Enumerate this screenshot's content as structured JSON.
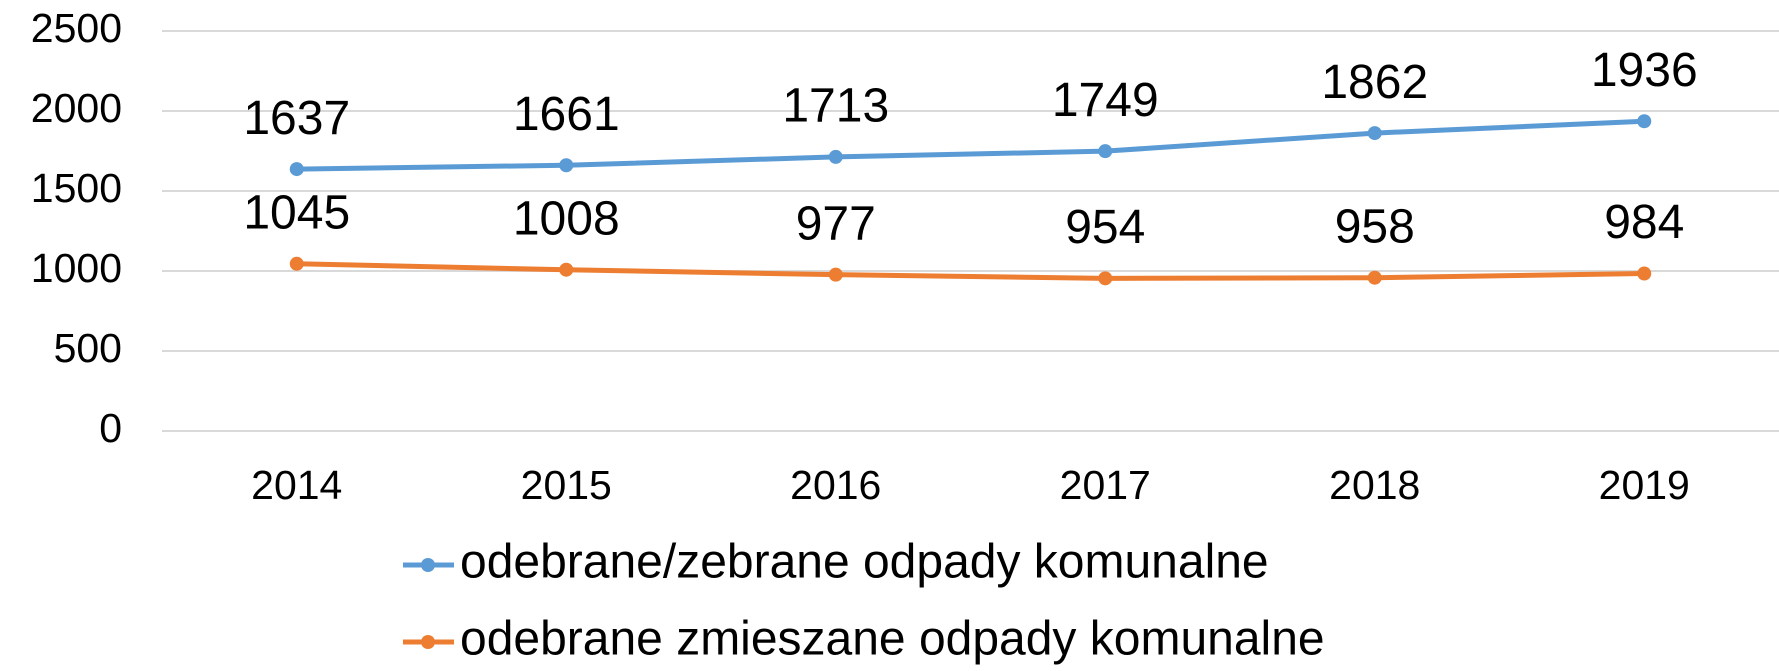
{
  "chart_data": {
    "type": "line",
    "categories": [
      "2014",
      "2015",
      "2016",
      "2017",
      "2018",
      "2019"
    ],
    "series": [
      {
        "name": "odebrane/zebrane odpady komunalne",
        "color": "#5b9bd5",
        "values": [
          1637,
          1661,
          1713,
          1749,
          1862,
          1936
        ]
      },
      {
        "name": "odebrane zmieszane odpady komunalne",
        "color": "#ed7d31",
        "values": [
          1045,
          1008,
          977,
          954,
          958,
          984
        ]
      }
    ],
    "ylim": [
      0,
      2500
    ],
    "yticks": [
      0,
      500,
      1000,
      1500,
      2000,
      2500
    ],
    "grid": true,
    "legend": "bottom"
  }
}
